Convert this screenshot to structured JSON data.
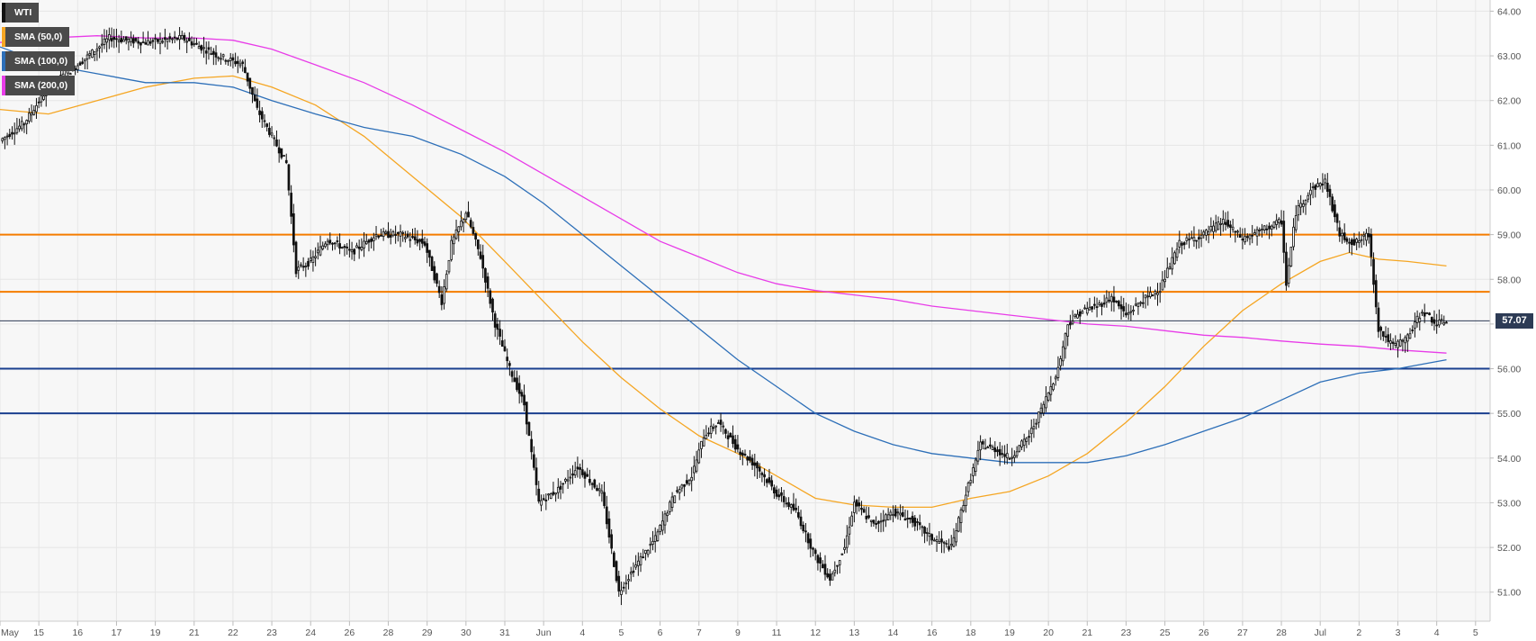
{
  "chart_data": {
    "type": "candlestick",
    "symbol": "WTI",
    "current_price": "57.07",
    "y_ticks": [
      "51.00",
      "52.00",
      "53.00",
      "54.00",
      "55.00",
      "56.00",
      "57.00",
      "58.00",
      "59.00",
      "60.00",
      "61.00",
      "62.00",
      "63.00",
      "64.00"
    ],
    "ylim": [
      50.35,
      64.25
    ],
    "x_ticks": [
      {
        "label": "May",
        "x": 0
      },
      {
        "label": "15",
        "x": 16
      },
      {
        "label": "16",
        "x": 32
      },
      {
        "label": "17",
        "x": 48
      },
      {
        "label": "19",
        "x": 64
      },
      {
        "label": "21",
        "x": 80
      },
      {
        "label": "22",
        "x": 96
      },
      {
        "label": "23",
        "x": 112
      },
      {
        "label": "24",
        "x": 128
      },
      {
        "label": "26",
        "x": 144
      },
      {
        "label": "28",
        "x": 160
      },
      {
        "label": "29",
        "x": 176
      },
      {
        "label": "30",
        "x": 192
      },
      {
        "label": "31",
        "x": 208
      },
      {
        "label": "Jun",
        "x": 224
      },
      {
        "label": "4",
        "x": 240
      },
      {
        "label": "5",
        "x": 256
      },
      {
        "label": "6",
        "x": 272
      },
      {
        "label": "7",
        "x": 288
      },
      {
        "label": "9",
        "x": 304
      },
      {
        "label": "11",
        "x": 320
      },
      {
        "label": "12",
        "x": 336
      },
      {
        "label": "13",
        "x": 352
      },
      {
        "label": "14",
        "x": 368
      },
      {
        "label": "16",
        "x": 384
      },
      {
        "label": "18",
        "x": 400
      },
      {
        "label": "19",
        "x": 416
      },
      {
        "label": "20",
        "x": 432
      },
      {
        "label": "21",
        "x": 448
      },
      {
        "label": "23",
        "x": 464
      },
      {
        "label": "25",
        "x": 480
      },
      {
        "label": "26",
        "x": 496
      },
      {
        "label": "27",
        "x": 512
      },
      {
        "label": "28",
        "x": 528
      },
      {
        "label": "Jul",
        "x": 544
      },
      {
        "label": "2",
        "x": 560
      },
      {
        "label": "3",
        "x": 576
      },
      {
        "label": "4",
        "x": 592
      },
      {
        "label": "5",
        "x": 608
      }
    ],
    "x_range": [
      0,
      614
    ],
    "legend": [
      {
        "name": "WTI",
        "color": "#111111"
      },
      {
        "name": "SMA (50,0)",
        "color": "#f5a623"
      },
      {
        "name": "SMA (100,0)",
        "color": "#2d6fb8"
      },
      {
        "name": "SMA (200,0)",
        "color": "#e83ce8"
      }
    ],
    "horizontal_levels": [
      {
        "value": 59.0,
        "color": "#f57c00",
        "width": 2
      },
      {
        "value": 57.72,
        "color": "#f57c00",
        "width": 2
      },
      {
        "value": 57.07,
        "color": "#2d3b55",
        "width": 1
      },
      {
        "value": 56.0,
        "color": "#1a3f8f",
        "width": 2
      },
      {
        "value": 55.0,
        "color": "#1a3f8f",
        "width": 2
      }
    ],
    "close_path": [
      [
        0,
        61.1
      ],
      [
        10,
        61.5
      ],
      [
        20,
        62.3
      ],
      [
        32,
        62.8
      ],
      [
        45,
        63.4
      ],
      [
        60,
        63.3
      ],
      [
        75,
        63.4
      ],
      [
        90,
        63.0
      ],
      [
        100,
        62.8
      ],
      [
        106,
        61.8
      ],
      [
        112,
        61.2
      ],
      [
        118,
        60.6
      ],
      [
        122,
        58.2
      ],
      [
        128,
        58.4
      ],
      [
        135,
        58.9
      ],
      [
        145,
        58.6
      ],
      [
        155,
        59.0
      ],
      [
        165,
        59.0
      ],
      [
        175,
        58.8
      ],
      [
        182,
        57.5
      ],
      [
        186,
        58.8
      ],
      [
        192,
        59.5
      ],
      [
        198,
        58.5
      ],
      [
        204,
        57.0
      ],
      [
        210,
        56.0
      ],
      [
        216,
        55.2
      ],
      [
        222,
        53.0
      ],
      [
        230,
        53.3
      ],
      [
        238,
        53.8
      ],
      [
        248,
        53.2
      ],
      [
        255,
        51.0
      ],
      [
        262,
        51.6
      ],
      [
        270,
        52.2
      ],
      [
        278,
        53.2
      ],
      [
        285,
        53.6
      ],
      [
        290,
        54.5
      ],
      [
        296,
        54.8
      ],
      [
        304,
        54.2
      ],
      [
        312,
        53.8
      ],
      [
        320,
        53.2
      ],
      [
        328,
        52.8
      ],
      [
        336,
        51.8
      ],
      [
        342,
        51.3
      ],
      [
        348,
        52.0
      ],
      [
        352,
        53.0
      ],
      [
        360,
        52.5
      ],
      [
        368,
        52.8
      ],
      [
        376,
        52.6
      ],
      [
        384,
        52.2
      ],
      [
        392,
        52.0
      ],
      [
        398,
        53.2
      ],
      [
        404,
        54.3
      ],
      [
        410,
        54.2
      ],
      [
        416,
        54.0
      ],
      [
        424,
        54.5
      ],
      [
        430,
        55.2
      ],
      [
        436,
        56.0
      ],
      [
        440,
        57.0
      ],
      [
        446,
        57.3
      ],
      [
        452,
        57.4
      ],
      [
        458,
        57.6
      ],
      [
        464,
        57.2
      ],
      [
        470,
        57.5
      ],
      [
        478,
        57.8
      ],
      [
        486,
        58.8
      ],
      [
        496,
        59.0
      ],
      [
        504,
        59.3
      ],
      [
        512,
        58.9
      ],
      [
        520,
        59.1
      ],
      [
        528,
        59.3
      ],
      [
        530,
        57.9
      ],
      [
        534,
        59.5
      ],
      [
        540,
        60.0
      ],
      [
        546,
        60.2
      ],
      [
        552,
        59.0
      ],
      [
        558,
        58.8
      ],
      [
        564,
        59.0
      ],
      [
        568,
        56.9
      ],
      [
        574,
        56.5
      ],
      [
        580,
        56.7
      ],
      [
        586,
        57.3
      ],
      [
        592,
        57.0
      ],
      [
        596,
        57.07
      ]
    ],
    "series": [
      {
        "name": "SMA (50,0)",
        "color": "#f5a623",
        "points": [
          [
            0,
            61.8
          ],
          [
            20,
            61.7
          ],
          [
            40,
            62.0
          ],
          [
            60,
            62.3
          ],
          [
            80,
            62.5
          ],
          [
            96,
            62.55
          ],
          [
            112,
            62.3
          ],
          [
            130,
            61.9
          ],
          [
            150,
            61.2
          ],
          [
            170,
            60.3
          ],
          [
            190,
            59.4
          ],
          [
            208,
            58.4
          ],
          [
            224,
            57.5
          ],
          [
            240,
            56.6
          ],
          [
            256,
            55.8
          ],
          [
            272,
            55.1
          ],
          [
            288,
            54.5
          ],
          [
            304,
            54.1
          ],
          [
            320,
            53.6
          ],
          [
            336,
            53.1
          ],
          [
            352,
            52.95
          ],
          [
            368,
            52.9
          ],
          [
            384,
            52.9
          ],
          [
            400,
            53.1
          ],
          [
            416,
            53.25
          ],
          [
            432,
            53.6
          ],
          [
            448,
            54.1
          ],
          [
            464,
            54.8
          ],
          [
            480,
            55.6
          ],
          [
            496,
            56.5
          ],
          [
            512,
            57.3
          ],
          [
            528,
            57.9
          ],
          [
            544,
            58.4
          ],
          [
            556,
            58.6
          ],
          [
            568,
            58.45
          ],
          [
            580,
            58.4
          ],
          [
            596,
            58.3
          ]
        ]
      },
      {
        "name": "SMA (100,0)",
        "color": "#2d6fb8",
        "points": [
          [
            0,
            63.2
          ],
          [
            20,
            62.8
          ],
          [
            40,
            62.6
          ],
          [
            60,
            62.4
          ],
          [
            80,
            62.4
          ],
          [
            96,
            62.3
          ],
          [
            112,
            62.0
          ],
          [
            130,
            61.7
          ],
          [
            150,
            61.4
          ],
          [
            170,
            61.2
          ],
          [
            190,
            60.8
          ],
          [
            208,
            60.3
          ],
          [
            224,
            59.7
          ],
          [
            240,
            59.0
          ],
          [
            256,
            58.3
          ],
          [
            272,
            57.6
          ],
          [
            288,
            56.9
          ],
          [
            304,
            56.2
          ],
          [
            320,
            55.6
          ],
          [
            336,
            55.0
          ],
          [
            352,
            54.6
          ],
          [
            368,
            54.3
          ],
          [
            384,
            54.1
          ],
          [
            400,
            54.0
          ],
          [
            416,
            53.9
          ],
          [
            432,
            53.9
          ],
          [
            448,
            53.9
          ],
          [
            464,
            54.05
          ],
          [
            480,
            54.3
          ],
          [
            496,
            54.6
          ],
          [
            512,
            54.9
          ],
          [
            528,
            55.3
          ],
          [
            544,
            55.7
          ],
          [
            560,
            55.9
          ],
          [
            576,
            56.0
          ],
          [
            596,
            56.2
          ]
        ]
      },
      {
        "name": "SMA (200,0)",
        "color": "#e83ce8",
        "points": [
          [
            0,
            63.3
          ],
          [
            20,
            63.4
          ],
          [
            40,
            63.45
          ],
          [
            60,
            63.4
          ],
          [
            80,
            63.4
          ],
          [
            96,
            63.35
          ],
          [
            112,
            63.15
          ],
          [
            130,
            62.8
          ],
          [
            150,
            62.4
          ],
          [
            170,
            61.9
          ],
          [
            190,
            61.35
          ],
          [
            208,
            60.85
          ],
          [
            224,
            60.35
          ],
          [
            240,
            59.85
          ],
          [
            256,
            59.35
          ],
          [
            272,
            58.85
          ],
          [
            288,
            58.5
          ],
          [
            304,
            58.15
          ],
          [
            320,
            57.9
          ],
          [
            336,
            57.75
          ],
          [
            352,
            57.65
          ],
          [
            368,
            57.55
          ],
          [
            384,
            57.4
          ],
          [
            400,
            57.3
          ],
          [
            416,
            57.2
          ],
          [
            432,
            57.1
          ],
          [
            448,
            57.0
          ],
          [
            464,
            56.95
          ],
          [
            480,
            56.85
          ],
          [
            496,
            56.75
          ],
          [
            512,
            56.7
          ],
          [
            528,
            56.62
          ],
          [
            544,
            56.55
          ],
          [
            560,
            56.5
          ],
          [
            576,
            56.42
          ],
          [
            596,
            56.35
          ]
        ]
      }
    ]
  }
}
